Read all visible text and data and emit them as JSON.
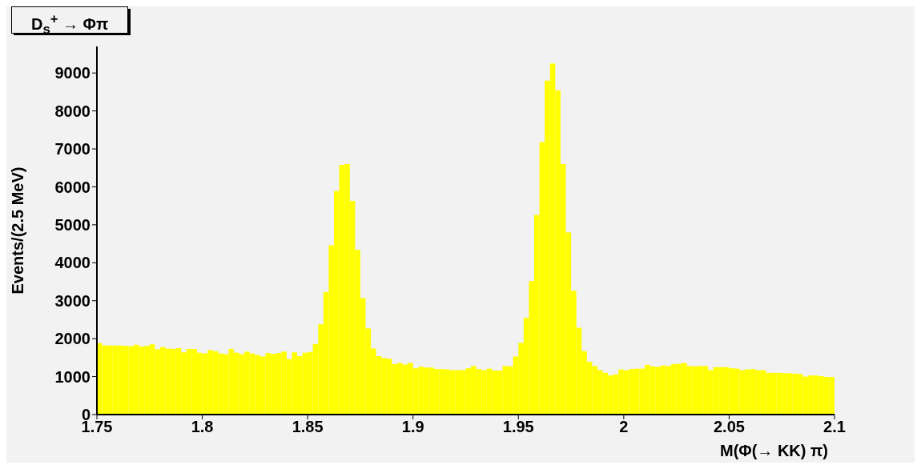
{
  "chart_data": {
    "type": "histogram",
    "title": "D$_{s}$$^{+}$ → Φπ",
    "xlabel": "M(Φ(→ KK) π)",
    "ylabel": "Events/(2.5 MeV)",
    "color": "#ffff00",
    "bins": [
      1.75,
      1.7525,
      1.755,
      1.7575,
      1.76,
      1.7625,
      1.765,
      1.7675,
      1.77,
      1.7725,
      1.775,
      1.7775,
      1.78,
      1.7825,
      1.785,
      1.7875,
      1.79,
      1.7925,
      1.795,
      1.7975,
      1.8,
      1.8025,
      1.805,
      1.8075,
      1.81,
      1.8125,
      1.815,
      1.8175,
      1.82,
      1.8225,
      1.825,
      1.8275,
      1.83,
      1.8325,
      1.835,
      1.8375,
      1.84,
      1.8425,
      1.845,
      1.8475,
      1.85,
      1.8525,
      1.855,
      1.8575,
      1.86,
      1.8625,
      1.865,
      1.8675,
      1.87,
      1.8725,
      1.875,
      1.8775,
      1.88,
      1.8825,
      1.885,
      1.8875,
      1.89,
      1.8925,
      1.895,
      1.8975,
      1.9,
      1.9025,
      1.905,
      1.9075,
      1.91,
      1.9125,
      1.915,
      1.9175,
      1.92,
      1.9225,
      1.925,
      1.9275,
      1.93,
      1.9325,
      1.935,
      1.9375,
      1.94,
      1.9425,
      1.945,
      1.9475,
      1.95,
      1.9525,
      1.955,
      1.9575,
      1.96,
      1.9625,
      1.965,
      1.9675,
      1.97,
      1.9725,
      1.975,
      1.9775,
      1.98,
      1.9825,
      1.985,
      1.9875,
      1.99,
      1.9925,
      1.995,
      1.9975,
      2,
      2.0025,
      2.005,
      2.0075,
      2.01,
      2.0125,
      2.015,
      2.0175,
      2.02,
      2.0225,
      2.025,
      2.0275,
      2.03,
      2.0325,
      2.035,
      2.0375,
      2.04,
      2.0425,
      2.045,
      2.0475,
      2.05,
      2.0525,
      2.055,
      2.0575,
      2.06,
      2.0625,
      2.065,
      2.0675,
      2.07,
      2.0725,
      2.075,
      2.0775,
      2.08,
      2.0825,
      2.085,
      2.0875,
      2.09,
      2.0925,
      2.095,
      2.0975,
      2.1
    ],
    "values": [
      1880,
      1820,
      1820,
      1820,
      1820,
      1810,
      1800,
      1840,
      1790,
      1810,
      1850,
      1720,
      1780,
      1740,
      1730,
      1750,
      1640,
      1730,
      1730,
      1630,
      1610,
      1700,
      1670,
      1610,
      1590,
      1730,
      1630,
      1590,
      1660,
      1610,
      1570,
      1530,
      1620,
      1600,
      1620,
      1660,
      1460,
      1640,
      1540,
      1630,
      1650,
      1860,
      2380,
      3230,
      4460,
      5890,
      6580,
      6600,
      5630,
      4340,
      3070,
      2270,
      1740,
      1540,
      1490,
      1470,
      1330,
      1360,
      1320,
      1360,
      1220,
      1260,
      1240,
      1240,
      1200,
      1200,
      1190,
      1170,
      1170,
      1170,
      1220,
      1280,
      1200,
      1170,
      1210,
      1160,
      1160,
      1280,
      1270,
      1530,
      1890,
      2550,
      3520,
      5260,
      7180,
      8800,
      9250,
      8540,
      6600,
      4800,
      3260,
      2290,
      1670,
      1390,
      1280,
      1170,
      1100,
      1030,
      1060,
      1190,
      1170,
      1200,
      1210,
      1210,
      1310,
      1270,
      1260,
      1290,
      1280,
      1330,
      1340,
      1360,
      1280,
      1270,
      1280,
      1280,
      1170,
      1250,
      1250,
      1250,
      1220,
      1210,
      1170,
      1190,
      1200,
      1170,
      1170,
      1100,
      1100,
      1100,
      1090,
      1090,
      1080,
      1070,
      1000,
      1030,
      1030,
      1010,
      990,
      990
    ],
    "xlim": [
      1.75,
      2.1
    ],
    "xticks": [
      1.75,
      1.8,
      1.85,
      1.9,
      1.95,
      2,
      2.05,
      2.1
    ],
    "ylim": [
      0,
      9700
    ],
    "yticks": [
      0,
      1000,
      2000,
      3000,
      4000,
      5000,
      6000,
      7000,
      8000,
      9000
    ]
  }
}
